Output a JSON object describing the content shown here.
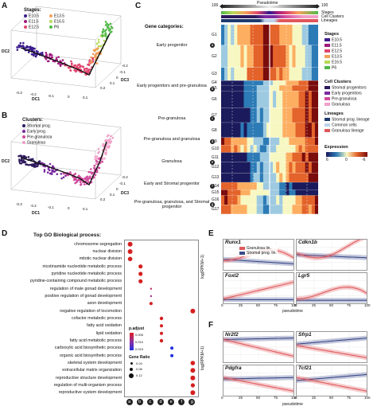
{
  "panel_labels": [
    "A",
    "B",
    "C",
    "D",
    "E",
    "F"
  ],
  "panel_a": {
    "legend_title": "Stages:",
    "legend": [
      {
        "label": "E10.5",
        "color": "#3b1c8c"
      },
      {
        "label": "E11.5",
        "color": "#a11a7b"
      },
      {
        "label": "E12.5",
        "color": "#e0456d"
      },
      {
        "label": "E13.5",
        "color": "#f5a15a"
      },
      {
        "label": "E16.5",
        "color": "#b8d957"
      },
      {
        "label": "P6",
        "color": "#50b848"
      }
    ],
    "axis_dc1": "DC1",
    "axis_dc2": "DC2",
    "axis_dc3": "DC3",
    "ticks_dc1": [
      "-0.3",
      "-0.2",
      "-0.1",
      "0",
      "0.1"
    ],
    "ticks_dc3": [
      "-0.2",
      "-0.1",
      "0",
      "0.1",
      "0.2"
    ]
  },
  "panel_b": {
    "legend_title": "Clusters:",
    "legend": [
      {
        "label": "Stromal prog.",
        "color": "#2e1a5e"
      },
      {
        "label": "Early prog.",
        "color": "#7b2aa0"
      },
      {
        "label": "Pre-granulosa",
        "color": "#d04a9c"
      },
      {
        "label": "Granulosa",
        "color": "#f29fc8"
      }
    ],
    "axis_dc1": "DC1",
    "axis_dc2": "DC2",
    "axis_dc3": "DC3",
    "ticks_dc1": [
      "-0.3",
      "-0.2",
      "-0.1",
      "0",
      "0.1"
    ],
    "ticks_dc3": [
      "-0.2",
      "-0.1",
      "0",
      "0.1",
      "0.2"
    ]
  },
  "panel_c": {
    "top_axis": {
      "left": "100",
      "center": "Pseudotime",
      "right": "100",
      "zero": "0"
    },
    "row_labels": [
      "Stages",
      "Cell Clusters",
      "Lineages"
    ],
    "gene_categories_title": "Gene categories:",
    "categories": [
      {
        "label": "Early progenitor",
        "tag": "a"
      },
      {
        "label": "Early progenitors and pre-granulosa",
        "tag": "b"
      },
      {
        "label": "Pre-granulosa",
        "tag": "c"
      },
      {
        "label": "Pre-granulosa and granulosa",
        "tag": "d"
      },
      {
        "label": "Granulosa",
        "tag": "e"
      },
      {
        "label": "Early and Stromal progenitor",
        "tag": "f"
      },
      {
        "label": "Pre-granulosa, granulosa, and Stromal progenitor",
        "tag": "g"
      }
    ],
    "gene_groups": [
      "G1",
      "G2",
      "G3",
      "G4",
      "G5",
      "G6",
      "G7",
      "G8",
      "G9",
      "G10",
      "G11",
      "G12",
      "G13",
      "G14",
      "G15",
      "G16",
      "G17"
    ],
    "legend_stages_title": "Stages",
    "legend_stages": [
      {
        "label": "E10.5",
        "color": "#3b1c8c"
      },
      {
        "label": "E11.5",
        "color": "#a11a7b"
      },
      {
        "label": "E12.5",
        "color": "#e0456d"
      },
      {
        "label": "E13.5",
        "color": "#f5a15a"
      },
      {
        "label": "E16.5",
        "color": "#b8d957"
      },
      {
        "label": "P6",
        "color": "#50b848"
      }
    ],
    "legend_clusters_title": "Cell Clusters",
    "legend_clusters": [
      {
        "label": "Stromal progenitors",
        "color": "#2e1a5e"
      },
      {
        "label": "Early progenitors",
        "color": "#7b2aa0"
      },
      {
        "label": "Pre-granulosa",
        "color": "#d04a9c"
      },
      {
        "label": "Granulosa",
        "color": "#f29fc8"
      }
    ],
    "legend_lineages_title": "Lineages",
    "legend_lineages": [
      {
        "label": "Stromal prog. lineage",
        "color": "#1d3a6e"
      },
      {
        "label": "Common cells",
        "color": "#bcd3ea"
      },
      {
        "label": "Granulosa lineage",
        "color": "#e0565b"
      }
    ],
    "expression_title": "Expression",
    "expression_ticks": [
      "6",
      "0",
      "-6"
    ]
  },
  "panel_d": {
    "title": "Top GO Biological process:",
    "terms": [
      "chromosome segregation",
      "nuclear division",
      "mitotic nuclear division",
      "nicotinamide nucleotide metabolic process",
      "pyridine nucleotide metabolic process",
      "pyridine-containing compound metabolic process",
      "regulation of male gonad development",
      "positive regulation of gonad development",
      "axon development",
      "negative regulation of locomotion",
      "cofactor metabolic process",
      "fatty acid oxidation",
      "lipid oxidation",
      "fatty acid metabolic process",
      "carboxylic acid biosynthetic process",
      "organic acid biosynthetic process",
      "skeletal system development",
      "extracellular matrix organization",
      "reproductive structure development",
      "regulation of multi-organism process",
      "reproductive system development"
    ],
    "columns": [
      "a",
      "b",
      "c",
      "d",
      "e",
      "f",
      "g"
    ],
    "padj_title": "p.adjust",
    "padj_ticks": [
      "0.005",
      "0.010",
      "0.015"
    ],
    "ratio_title": "Gene Ratio",
    "ratio_ticks": [
      "0.04",
      "0.08",
      "0.12"
    ]
  },
  "panel_e": {
    "ylabel": "log(RPKM+1)",
    "xlabel": "pseudotime",
    "legend": [
      {
        "label": "Granulosa lin.",
        "color": "#e05a5e"
      },
      {
        "label": "Stromal prog. lin.",
        "color": "#3a4a8a"
      }
    ],
    "plots": [
      "Runx1",
      "Cdkn1b",
      "Foxl2",
      "Lgr5"
    ],
    "x_ticks": [
      "0",
      "25",
      "50",
      "75",
      "100"
    ],
    "y_ticks": [
      "0",
      "1",
      "2",
      "3"
    ]
  },
  "panel_f": {
    "ylabel": "log(RPKM+1)",
    "xlabel": "pseudotime",
    "plots": [
      "Nr2f2",
      "Sfrp1",
      "Pdgfra",
      "Tcf21"
    ],
    "x_ticks": [
      "0",
      "25",
      "50",
      "75",
      "100"
    ],
    "y_ticks": [
      "0",
      "1",
      "2",
      "3"
    ]
  }
}
